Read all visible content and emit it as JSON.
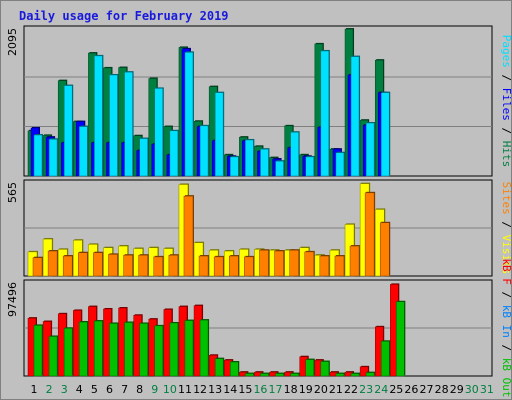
{
  "title": "Daily usage for February 2019",
  "colors": {
    "background": "#c0c0c0",
    "hits": "#008040",
    "files": "#0000ff",
    "pages": "#00e0ff",
    "visits": "#ffff00",
    "sites": "#ff8000",
    "kbin": "#0080ff",
    "kbout": "#00c000",
    "kbf": "#ff0000",
    "weekday_label": "#000000",
    "weekend_label": "#008040"
  },
  "chart_data": [
    {
      "type": "bar",
      "panel": "hits-files-pages",
      "ymax_label": "2095",
      "ylim": [
        0,
        2095
      ],
      "legend": [
        {
          "text": "Pages",
          "color": "#00e0ff"
        },
        {
          "text": " / ",
          "color": "#000000"
        },
        {
          "text": "Files",
          "color": "#0000ff"
        },
        {
          "text": " / ",
          "color": "#000000"
        },
        {
          "text": "Hits",
          "color": "#008040"
        }
      ],
      "series": [
        {
          "name": "Hits",
          "color": "#008040",
          "values": [
            640,
            575,
            1350,
            770,
            1740,
            1530,
            1535,
            570,
            1380,
            700,
            1820,
            775,
            1265,
            300,
            550,
            420,
            260,
            710,
            300,
            1870,
            380,
            2080,
            790,
            1640,
            0,
            0,
            0,
            0
          ]
        },
        {
          "name": "Files",
          "color": "#0000ff",
          "values": [
            680,
            550,
            470,
            770,
            470,
            470,
            470,
            360,
            450,
            300,
            1800,
            700,
            500,
            280,
            500,
            350,
            240,
            400,
            280,
            690,
            380,
            1430,
            720,
            1180,
            0,
            0,
            0,
            0
          ]
        },
        {
          "name": "Pages",
          "color": "#00e0ff",
          "values": [
            580,
            520,
            1280,
            700,
            1700,
            1430,
            1470,
            530,
            1240,
            640,
            1750,
            710,
            1180,
            270,
            510,
            380,
            210,
            620,
            270,
            1770,
            330,
            1690,
            750,
            1180,
            0,
            0,
            0,
            0
          ]
        }
      ]
    },
    {
      "type": "bar",
      "panel": "visits-sites",
      "ymax_label": "565",
      "ylim": [
        0,
        565
      ],
      "legend": [
        {
          "text": "Sites",
          "color": "#ff8000"
        },
        {
          "text": " / ",
          "color": "#000000"
        },
        {
          "text": "Visits",
          "color": "#ffff00"
        }
      ],
      "series": [
        {
          "name": "Visits",
          "color": "#ffff00",
          "values": [
            145,
            222,
            160,
            215,
            190,
            170,
            180,
            165,
            170,
            165,
            550,
            200,
            155,
            150,
            160,
            160,
            155,
            155,
            170,
            125,
            155,
            310,
            555,
            400,
            0,
            0,
            0,
            0
          ]
        },
        {
          "name": "Sites",
          "color": "#ff8000",
          "values": [
            110,
            150,
            120,
            140,
            140,
            130,
            125,
            125,
            115,
            125,
            480,
            120,
            115,
            120,
            115,
            155,
            150,
            155,
            145,
            120,
            120,
            180,
            500,
            320,
            0,
            0,
            0,
            0
          ]
        }
      ]
    },
    {
      "type": "bar",
      "panel": "kbf-kbin-kbout",
      "ymax_label": "97496",
      "ylim": [
        0,
        97496
      ],
      "legend": [
        {
          "text": "kB F",
          "color": "#ff0000"
        },
        {
          "text": " / ",
          "color": "#000000"
        },
        {
          "text": "kB In",
          "color": "#0080ff"
        },
        {
          "text": " / ",
          "color": "#000000"
        },
        {
          "text": "kB Out",
          "color": "#00c000"
        }
      ],
      "series": [
        {
          "name": "kB F",
          "color": "#ff0000",
          "values": [
            60000,
            56500,
            64500,
            68000,
            72000,
            69500,
            70500,
            63000,
            59000,
            69000,
            72000,
            73000,
            21500,
            16500,
            4000,
            4000,
            4000,
            4000,
            20000,
            16500,
            4000,
            4000,
            9500,
            51000,
            95000,
            0,
            0,
            0
          ]
        },
        {
          "name": "kB In",
          "color": "#0080ff",
          "values": [
            0,
            0,
            0,
            0,
            0,
            0,
            0,
            0,
            0,
            0,
            0,
            0,
            0,
            0,
            0,
            0,
            0,
            0,
            0,
            0,
            0,
            0,
            0,
            0,
            0,
            0,
            0,
            0
          ]
        },
        {
          "name": "kB Out",
          "color": "#00c000",
          "values": [
            52500,
            41000,
            49500,
            56000,
            57000,
            54500,
            55500,
            54500,
            52000,
            55000,
            57500,
            58000,
            18000,
            14500,
            2500,
            2500,
            2500,
            2500,
            17000,
            15000,
            2500,
            2500,
            3500,
            36000,
            77000,
            0,
            0,
            0
          ]
        }
      ]
    }
  ],
  "days": [
    {
      "label": "1",
      "weekend": false
    },
    {
      "label": "2",
      "weekend": true
    },
    {
      "label": "3",
      "weekend": true
    },
    {
      "label": "4",
      "weekend": false
    },
    {
      "label": "5",
      "weekend": false
    },
    {
      "label": "6",
      "weekend": false
    },
    {
      "label": "7",
      "weekend": false
    },
    {
      "label": "8",
      "weekend": false
    },
    {
      "label": "9",
      "weekend": true
    },
    {
      "label": "10",
      "weekend": true
    },
    {
      "label": "11",
      "weekend": false
    },
    {
      "label": "12",
      "weekend": false
    },
    {
      "label": "13",
      "weekend": false
    },
    {
      "label": "14",
      "weekend": false
    },
    {
      "label": "15",
      "weekend": false
    },
    {
      "label": "16",
      "weekend": true
    },
    {
      "label": "17",
      "weekend": true
    },
    {
      "label": "18",
      "weekend": false
    },
    {
      "label": "19",
      "weekend": false
    },
    {
      "label": "20",
      "weekend": false
    },
    {
      "label": "21",
      "weekend": false
    },
    {
      "label": "22",
      "weekend": false
    },
    {
      "label": "23",
      "weekend": true
    },
    {
      "label": "24",
      "weekend": true
    },
    {
      "label": "25",
      "weekend": false
    },
    {
      "label": "26",
      "weekend": false
    },
    {
      "label": "27",
      "weekend": false
    },
    {
      "label": "28",
      "weekend": false
    },
    {
      "label": "29",
      "weekend": false
    },
    {
      "label": "30",
      "weekend": true
    },
    {
      "label": "31",
      "weekend": true
    }
  ]
}
